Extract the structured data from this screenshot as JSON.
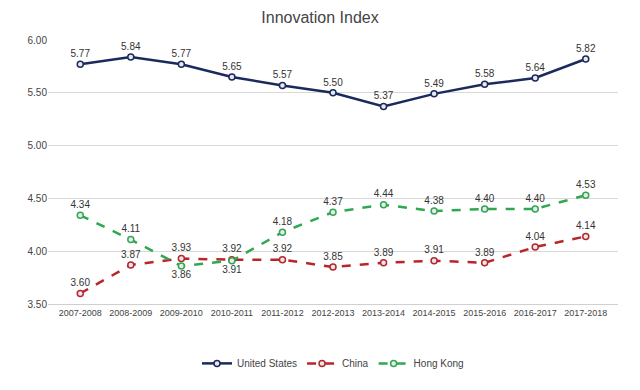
{
  "chart_data": {
    "type": "line",
    "title": "Innovation Index",
    "categories": [
      "2007-2008",
      "2008-2009",
      "2009-2010",
      "2010-2011",
      "2011-2012",
      "2012-2013",
      "2013-2014",
      "2014-2015",
      "2015-2016",
      "2016-2017",
      "2017-2018"
    ],
    "series": [
      {
        "name": "United States",
        "color": "#1b2a5c",
        "marker": "circle",
        "line_style": "solid",
        "values": [
          5.77,
          5.84,
          5.77,
          5.65,
          5.57,
          5.5,
          5.37,
          5.49,
          5.58,
          5.64,
          5.82
        ],
        "value_labels": [
          "5.77",
          "5.84",
          "5.77",
          "5.65",
          "5.57",
          "5.50",
          "5.37",
          "5.49",
          "5.58",
          "5.64",
          "5.82"
        ]
      },
      {
        "name": "China",
        "color": "#b8262b",
        "marker": "circle",
        "line_style": "dashed",
        "values": [
          3.6,
          3.87,
          3.93,
          3.92,
          3.92,
          3.85,
          3.89,
          3.91,
          3.89,
          4.04,
          4.14
        ],
        "value_labels": [
          "3.60",
          "3.87",
          "3.93",
          "3.92",
          "3.92",
          "3.85",
          "3.89",
          "3.91",
          "3.89",
          "4.04",
          "4.14"
        ]
      },
      {
        "name": "Hong Kong",
        "color": "#2fa84f",
        "marker": "circle",
        "line_style": "dashed",
        "values": [
          4.34,
          4.11,
          3.86,
          3.91,
          4.18,
          4.37,
          4.44,
          4.38,
          4.4,
          4.4,
          4.53
        ],
        "value_labels": [
          "4.34",
          "4.11",
          "3.86",
          "3.91",
          "4.18",
          "4.37",
          "4.44",
          "4.38",
          "4.40",
          "4.40",
          "4.53"
        ]
      }
    ],
    "ylim": [
      3.5,
      6.0
    ],
    "yticks": [
      {
        "value": 3.5,
        "label": "3.50"
      },
      {
        "value": 4.0,
        "label": "4.00"
      },
      {
        "value": 4.5,
        "label": "4.50"
      },
      {
        "value": 5.0,
        "label": "5.00"
      },
      {
        "value": 5.5,
        "label": "5.50"
      },
      {
        "value": 6.0,
        "label": "6.00"
      }
    ],
    "grid": true,
    "legend": "bottom",
    "data_labels": true
  }
}
